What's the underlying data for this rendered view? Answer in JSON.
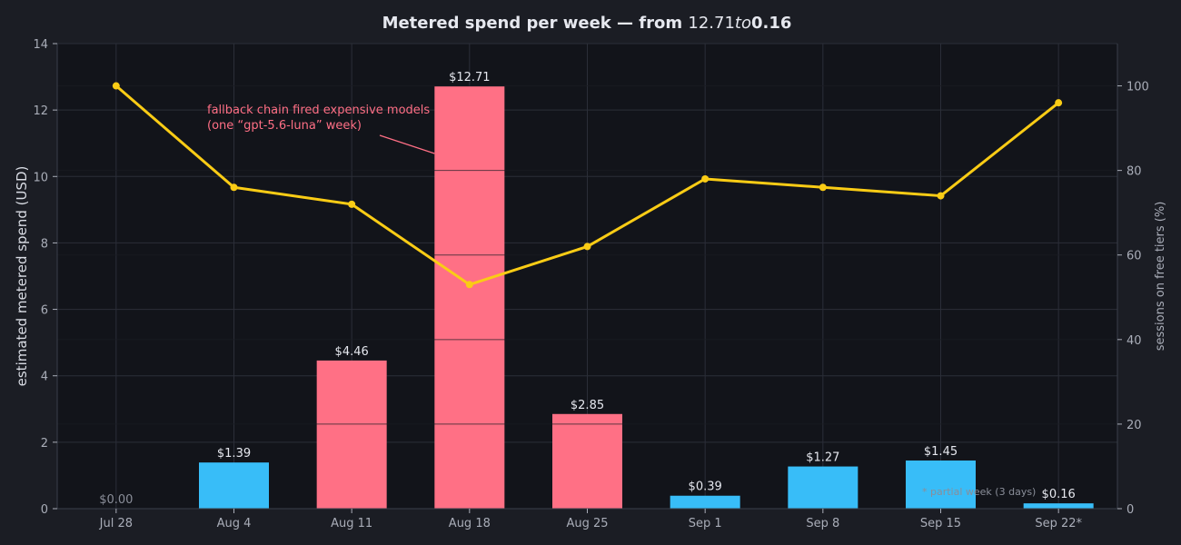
{
  "chart_data": {
    "type": "bar",
    "title": "Metered spend per week — from $12.71 to $0.16",
    "title_parts": {
      "pre": "Metered spend per week — from ",
      "a": "12.71",
      "mid": "to",
      "b": "0.16"
    },
    "ylabel": "estimated metered spend (USD)",
    "y2label": "sessions on free tiers (%)",
    "categories": [
      "Jul 28",
      "Aug 4",
      "Aug 11",
      "Aug 18",
      "Aug 25",
      "Sep 1",
      "Sep 8",
      "Sep 15",
      "Sep 22*"
    ],
    "values": [
      0.0,
      1.39,
      4.46,
      12.71,
      2.85,
      0.39,
      1.27,
      1.45,
      0.16
    ],
    "value_labels": [
      "$0.00",
      "$1.39",
      "$4.46",
      "$12.71",
      "$2.85",
      "$0.39",
      "$1.27",
      "$1.45",
      "$0.16"
    ],
    "highlighted": [
      false,
      false,
      true,
      true,
      true,
      false,
      false,
      false,
      false
    ],
    "ylim": [
      0,
      14
    ],
    "yticks": [
      0,
      2,
      4,
      6,
      8,
      10,
      12,
      14
    ],
    "line_series": {
      "axis": "right",
      "values": [
        100,
        76,
        72,
        53,
        62,
        78,
        76,
        74,
        96
      ]
    },
    "y2lim": [
      0,
      110
    ],
    "y2ticks": [
      0,
      20,
      40,
      60,
      80,
      100
    ],
    "grid": true,
    "annotation": {
      "lines": [
        "fallback chain fired expensive models",
        "(one “gpt-5.6-luna” week)"
      ],
      "target_index": 3
    },
    "note": "* partial week (3 days)",
    "colors": {
      "background": "#1b1d24",
      "plot_background": "#12141a",
      "grid": "#2b2e38",
      "bar_normal": "#38bdf8",
      "bar_highlight": "#ff7085",
      "line": "#facc15",
      "annotation": "#ff6f85"
    }
  }
}
